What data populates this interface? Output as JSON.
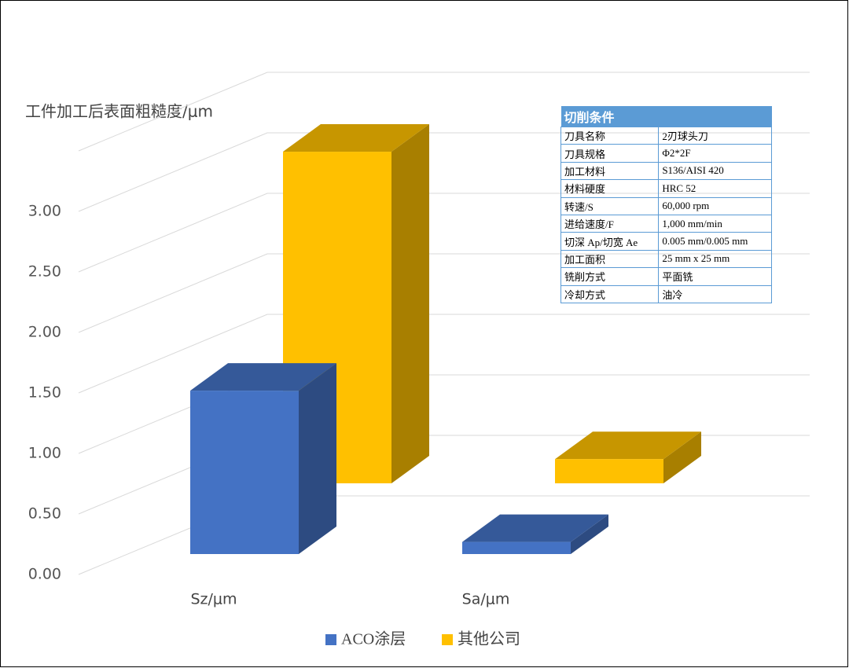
{
  "chart_data": {
    "type": "bar3d",
    "title": "工件加工后表面粗糙度/μm",
    "categories": [
      "Sz/μm",
      "Sa/μm"
    ],
    "series": [
      {
        "name": "ACO涂层",
        "color": "#4472c4",
        "values": [
          1.35,
          0.1
        ]
      },
      {
        "name": "其他公司",
        "color": "#ffc000",
        "values": [
          2.74,
          0.2
        ]
      }
    ],
    "ylim": [
      0,
      3.5
    ],
    "yticks": [
      {
        "value": 0,
        "label": "0.00"
      },
      {
        "value": 0.5,
        "label": "0.50"
      },
      {
        "value": 1,
        "label": "1.00"
      },
      {
        "value": 1.5,
        "label": "1.50"
      },
      {
        "value": 2,
        "label": "2.00"
      },
      {
        "value": 2.5,
        "label": "2.50"
      },
      {
        "value": 3,
        "label": "3.00"
      }
    ],
    "grid": true,
    "legend": "bottom"
  },
  "table": {
    "title": "切削条件",
    "rows": [
      [
        "刀具名称",
        "2刃球头刀"
      ],
      [
        "刀具规格",
        "Φ2*2F"
      ],
      [
        "加工材料",
        "S136/AISI 420"
      ],
      [
        "材料硬度",
        "HRC 52"
      ],
      [
        "转速/S",
        "60,000 rpm"
      ],
      [
        "进给速度/F",
        "1,000 mm/min"
      ],
      [
        "切深 Ap/切宽 Ae",
        "0.005 mm/0.005 mm"
      ],
      [
        "加工面积",
        "25 mm x 25 mm"
      ],
      [
        "铣削方式",
        "平面铣"
      ],
      [
        "冷却方式",
        "油冷"
      ]
    ]
  }
}
